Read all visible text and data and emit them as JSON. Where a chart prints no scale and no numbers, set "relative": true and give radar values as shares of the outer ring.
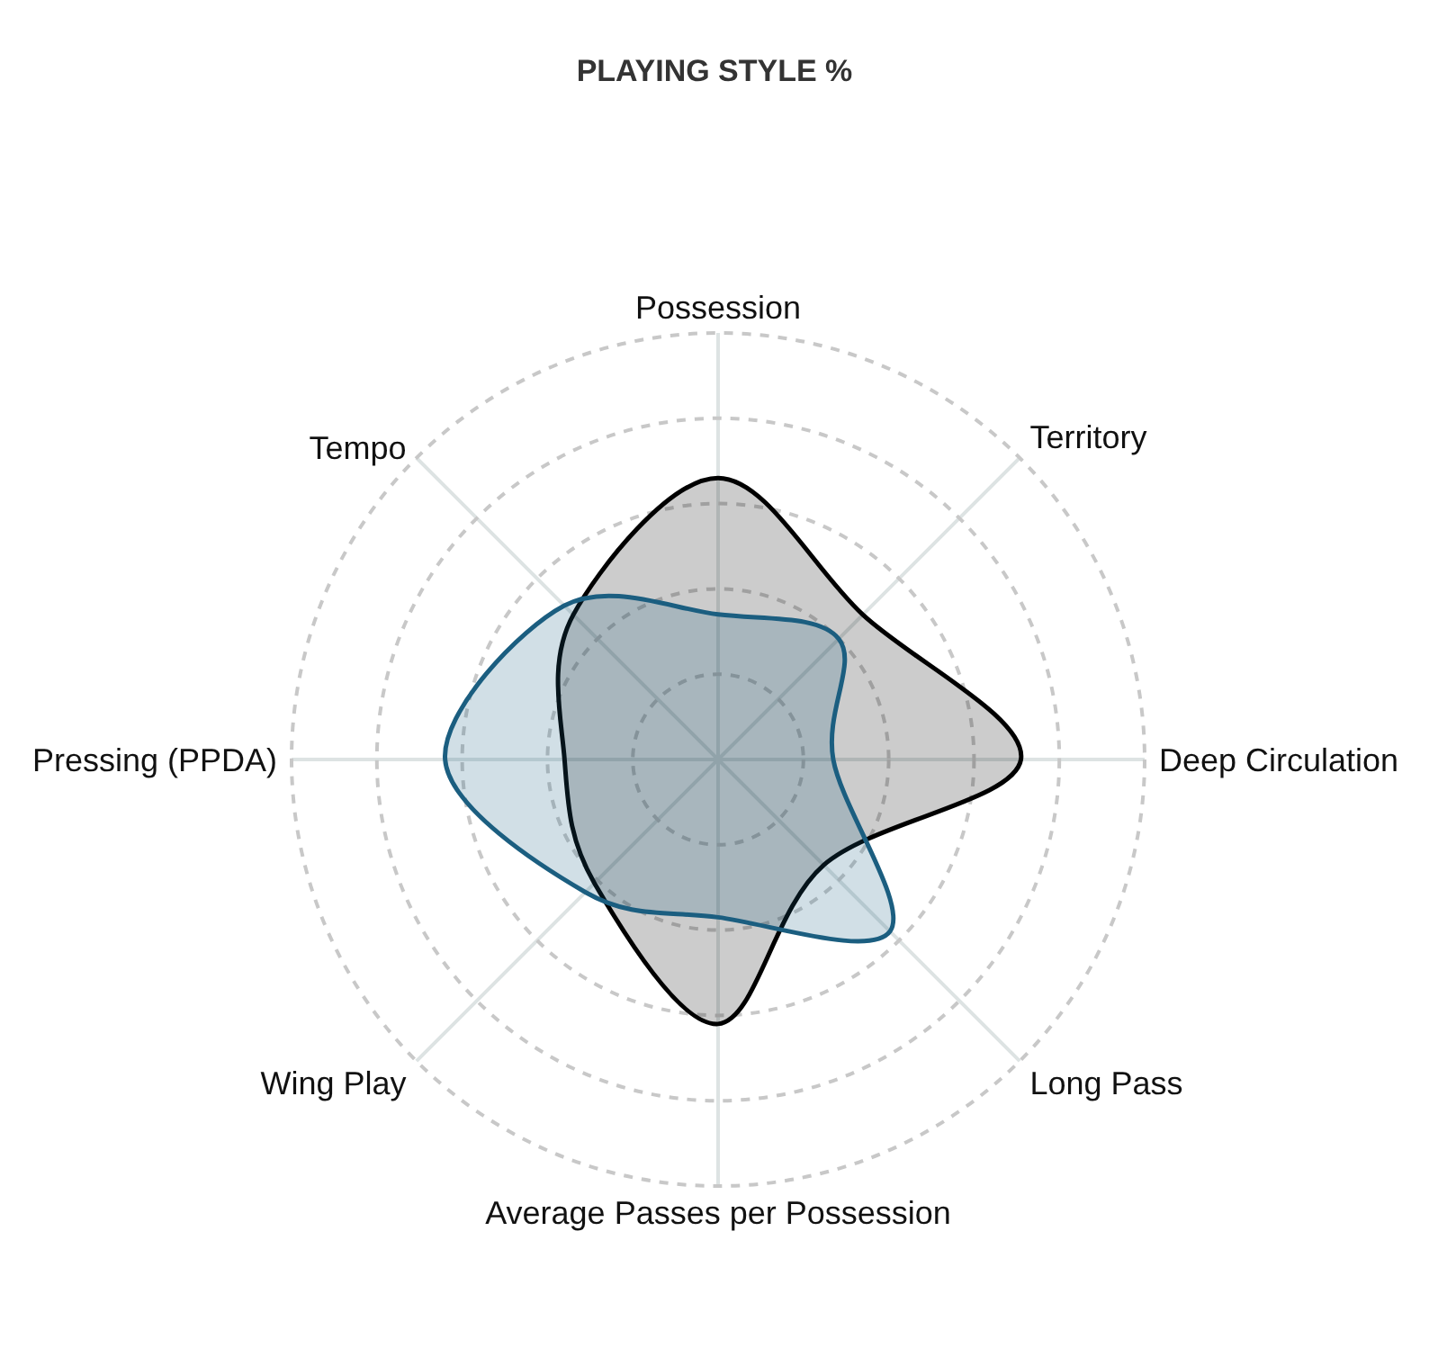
{
  "chart_data": {
    "type": "radar",
    "title": "PLAYING STYLE %",
    "relative": true,
    "grid": true,
    "categories": [
      "Possession",
      "Territory",
      "Deep Circulation",
      "Long Pass",
      "Average Passes per Possession",
      "Wing Play",
      "Pressing (PPDA)",
      "Tempo"
    ],
    "series": [
      {
        "color": "#000000",
        "values": [
          0.66,
          0.48,
          0.71,
          0.35,
          0.62,
          0.41,
          0.36,
          0.48
        ]
      },
      {
        "color": "#1b5e80",
        "values": [
          0.34,
          0.4,
          0.27,
          0.57,
          0.37,
          0.44,
          0.64,
          0.51
        ]
      }
    ]
  }
}
